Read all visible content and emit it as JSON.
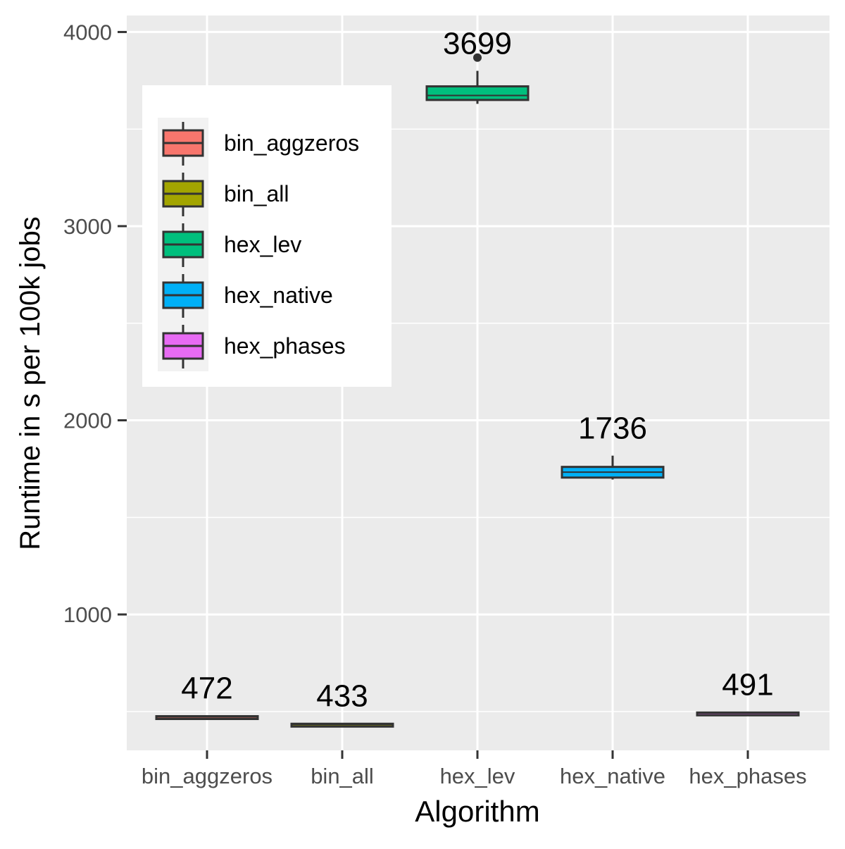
{
  "chart_data": {
    "type": "box",
    "xlabel": "Algorithm",
    "ylabel": "Runtime in s per 100k jobs",
    "ylim": [
      300,
      4085
    ],
    "y_ticks": [
      1000,
      2000,
      3000,
      4000
    ],
    "y_tick_labels": [
      "1000",
      "2000",
      "3000",
      "4000"
    ],
    "categories": [
      "bin_aggzeros",
      "bin_all",
      "hex_lev",
      "hex_native",
      "hex_phases"
    ],
    "boxes": [
      {
        "category": "bin_aggzeros",
        "min": 466,
        "q1": 469,
        "median": 472,
        "q3": 476,
        "max": 480,
        "outliers": [],
        "label": "472",
        "color": "#F8766D"
      },
      {
        "category": "bin_all",
        "min": 427,
        "q1": 430,
        "median": 433,
        "q3": 437,
        "max": 440,
        "outliers": [],
        "label": "433",
        "color": "#A3A500"
      },
      {
        "category": "hex_lev",
        "min": 3630,
        "q1": 3650,
        "median": 3673,
        "q3": 3720,
        "max": 3800,
        "outliers": [
          3868
        ],
        "label": "3699",
        "color": "#00BF7D"
      },
      {
        "category": "hex_native",
        "min": 1695,
        "q1": 1705,
        "median": 1733,
        "q3": 1760,
        "max": 1818,
        "outliers": [],
        "label": "1736",
        "color": "#00B0F6"
      },
      {
        "category": "hex_phases",
        "min": 487,
        "q1": 489,
        "median": 491,
        "q3": 495,
        "max": 498,
        "outliers": [],
        "label": "491",
        "color": "#E76BF3"
      }
    ],
    "legend": {
      "placement": "top-left",
      "entries": [
        "bin_aggzeros",
        "bin_all",
        "hex_lev",
        "hex_native",
        "hex_phases"
      ]
    },
    "grid": true,
    "panel_background": "#EBEBEB",
    "grid_color": "#FFFFFF",
    "box_outline_color": "#333333"
  }
}
